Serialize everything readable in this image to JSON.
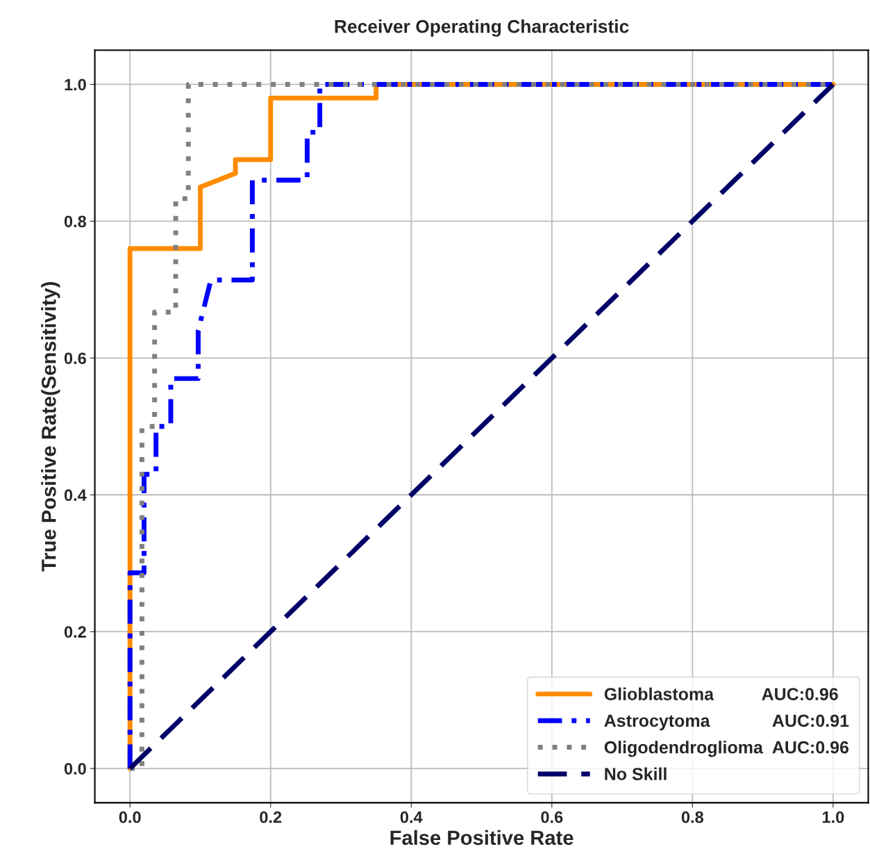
{
  "chart_data": {
    "type": "line",
    "title": "Receiver Operating Characteristic",
    "xlabel": "False Positive Rate",
    "ylabel": "True Positive Rate(Sensitivity)",
    "series": [
      {
        "name": "Glioblastoma          AUC:0.96",
        "color": "#ff8c00",
        "line_style": "solid",
        "x": [
          0,
          0,
          0.1,
          0.1,
          0.15,
          0.15,
          0.2,
          0.2,
          0.35,
          0.35,
          1
        ],
        "values": [
          0,
          0.76,
          0.76,
          0.85,
          0.87,
          0.89,
          0.89,
          0.98,
          0.98,
          1.0,
          1.0
        ]
      },
      {
        "name": "Astrocytoma             AUC:0.91",
        "color": "#0000ff",
        "line_style": "dashdot",
        "x": [
          0,
          0,
          0.02,
          0.02,
          0.037,
          0.037,
          0.058,
          0.058,
          0.097,
          0.097,
          0.115,
          0.174,
          0.174,
          0.252,
          0.252,
          0.27,
          0.27,
          1
        ],
        "values": [
          0,
          0.286,
          0.286,
          0.43,
          0.43,
          0.5,
          0.5,
          0.57,
          0.57,
          0.64,
          0.714,
          0.714,
          0.86,
          0.86,
          0.93,
          0.93,
          1.0,
          1.0
        ]
      },
      {
        "name": "Oligodendroglioma  AUC:0.96",
        "color": "#808080",
        "line_style": "dotted",
        "x": [
          0,
          0.017,
          0.017,
          0.035,
          0.035,
          0.065,
          0.065,
          0.083,
          0.083,
          1
        ],
        "values": [
          0,
          0,
          0.5,
          0.5,
          0.667,
          0.667,
          0.833,
          0.833,
          1.0,
          1.0
        ]
      },
      {
        "name": "No Skill",
        "color": "#000066",
        "line_style": "dashed",
        "x": [
          0,
          1
        ],
        "values": [
          0,
          1
        ]
      }
    ],
    "xlim": [
      -0.05,
      1.05
    ],
    "ylim": [
      -0.05,
      1.05
    ],
    "xticks": [
      {
        "value": 0,
        "label": "0.0"
      },
      {
        "value": 0.2,
        "label": "0.2"
      },
      {
        "value": 0.4,
        "label": "0.4"
      },
      {
        "value": 0.6,
        "label": "0.6"
      },
      {
        "value": 0.8,
        "label": "0.8"
      },
      {
        "value": 1,
        "label": "1.0"
      }
    ],
    "yticks": [
      {
        "value": 0,
        "label": "0.0"
      },
      {
        "value": 0.2,
        "label": "0.2"
      },
      {
        "value": 0.4,
        "label": "0.4"
      },
      {
        "value": 0.6,
        "label": "0.6"
      },
      {
        "value": 0.8,
        "label": "0.8"
      },
      {
        "value": 1,
        "label": "1.0"
      }
    ],
    "grid": true,
    "legend": "bottom right"
  }
}
